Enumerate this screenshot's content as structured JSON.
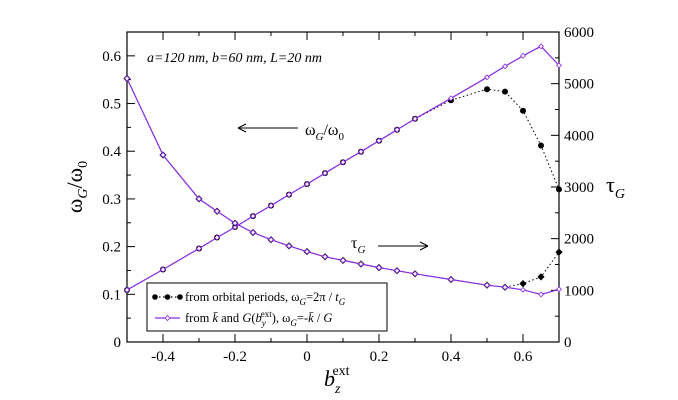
{
  "chart_data": {
    "type": "line",
    "title": "",
    "annotation": "a=120 nm, b=60 nm, L=20 nm",
    "xlabel": "b_z^ext",
    "ylabel_left": "ω_G/ω_0",
    "ylabel_right": "τ_G",
    "xlim": [
      -0.5,
      0.7
    ],
    "ylim_left": [
      0,
      0.65
    ],
    "ylim_right": [
      0,
      6000
    ],
    "x_ticks": [
      -0.4,
      -0.2,
      0,
      0.2,
      0.4,
      0.6
    ],
    "x_tick_labels": [
      "-0.4",
      "-0.2",
      "0",
      "0.2",
      "0.4",
      "0.6"
    ],
    "y_left_ticks": [
      0,
      0.1,
      0.2,
      0.3,
      0.4,
      0.5,
      0.6
    ],
    "y_left_tick_labels": [
      "0",
      "0.1",
      "0.2",
      "0.3",
      "0.4",
      "0.5",
      "0.6"
    ],
    "y_right_ticks": [
      0,
      1000,
      2000,
      3000,
      4000,
      5000,
      6000
    ],
    "y_right_tick_labels": [
      "0",
      "1000",
      "2000",
      "3000",
      "4000",
      "5000",
      "6000"
    ],
    "arrow_labels": {
      "omega": {
        "base": "ω",
        "sub": "G",
        "mid": "/ω",
        "sub2": "0"
      },
      "tau": {
        "base": "τ",
        "sub": "G"
      }
    },
    "legend": {
      "location": "bottom-left",
      "entries": [
        "from orbital periods, ω_G=2π / t_G",
        "from k̄ and G(b_y^ext),   ω_G=-k̄ / G"
      ]
    },
    "series": [
      {
        "name": "ω_G/ω_0 from orbital periods",
        "axis": "left",
        "style": "dotted-filled-circles",
        "x": [
          -0.5,
          -0.4,
          -0.3,
          -0.25,
          -0.2,
          -0.15,
          -0.1,
          -0.05,
          0,
          0.05,
          0.1,
          0.15,
          0.2,
          0.25,
          0.3,
          0.4,
          0.5,
          0.55,
          0.6,
          0.65,
          0.7
        ],
        "values": [
          0.109,
          0.152,
          0.196,
          0.219,
          0.241,
          0.264,
          0.286,
          0.309,
          0.331,
          0.354,
          0.377,
          0.399,
          0.422,
          0.445,
          0.468,
          0.507,
          0.53,
          0.525,
          0.485,
          0.412,
          0.32
        ]
      },
      {
        "name": "ω_G/ω_0 from k̄ and G",
        "axis": "left",
        "style": "solid-violet-small-diamonds",
        "x": [
          -0.5,
          -0.4,
          -0.3,
          -0.25,
          -0.2,
          -0.15,
          -0.1,
          -0.05,
          0,
          0.05,
          0.1,
          0.15,
          0.2,
          0.25,
          0.3,
          0.4,
          0.5,
          0.55,
          0.6,
          0.65,
          0.7
        ],
        "values": [
          0.109,
          0.152,
          0.196,
          0.219,
          0.241,
          0.264,
          0.286,
          0.309,
          0.331,
          0.354,
          0.377,
          0.399,
          0.422,
          0.445,
          0.468,
          0.511,
          0.555,
          0.578,
          0.6,
          0.62,
          0.58
        ]
      },
      {
        "name": "τ_G from orbital periods",
        "axis": "right",
        "style": "dotted-filled-diamonds",
        "x": [
          -0.5,
          -0.4,
          -0.3,
          -0.25,
          -0.2,
          -0.15,
          -0.1,
          -0.05,
          0,
          0.05,
          0.1,
          0.15,
          0.2,
          0.25,
          0.3,
          0.4,
          0.5,
          0.55,
          0.6,
          0.65,
          0.7
        ],
        "values": [
          5100,
          3620,
          2770,
          2530,
          2300,
          2120,
          1980,
          1860,
          1750,
          1650,
          1580,
          1510,
          1440,
          1380,
          1320,
          1210,
          1100,
          1060,
          1130,
          1260,
          1740
        ]
      },
      {
        "name": "τ_G from k̄ and G",
        "axis": "right",
        "style": "solid-violet-small-diamonds",
        "x": [
          -0.5,
          -0.4,
          -0.3,
          -0.25,
          -0.2,
          -0.15,
          -0.1,
          -0.05,
          0,
          0.05,
          0.1,
          0.15,
          0.2,
          0.25,
          0.3,
          0.4,
          0.5,
          0.55,
          0.6,
          0.65,
          0.7
        ],
        "values": [
          5100,
          3620,
          2770,
          2530,
          2300,
          2120,
          1980,
          1860,
          1750,
          1650,
          1580,
          1510,
          1440,
          1380,
          1320,
          1210,
          1100,
          1060,
          1010,
          920,
          1020
        ]
      }
    ]
  }
}
